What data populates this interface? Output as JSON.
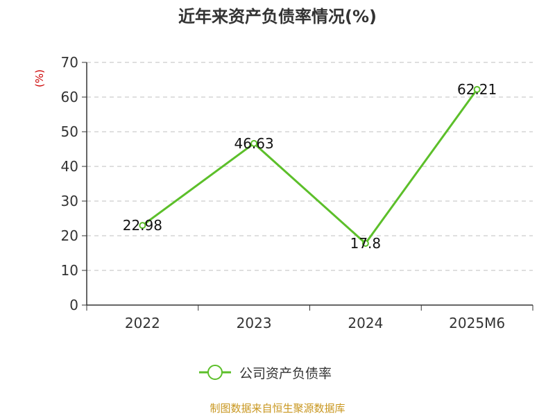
{
  "chart_data": {
    "type": "line",
    "title": "近年来资产负债率情况(%)",
    "ylabel": "(%)",
    "xlabel": "",
    "categories": [
      "2022",
      "2023",
      "2024",
      "2025M6"
    ],
    "series": [
      {
        "name": "公司资产负债率",
        "values": [
          22.98,
          46.63,
          17.8,
          62.21
        ]
      }
    ],
    "ylim": [
      0,
      70
    ],
    "yticks": [
      0,
      10,
      20,
      30,
      40,
      50,
      60,
      70
    ],
    "grid": true,
    "legend": "bottom",
    "colors": {
      "line": "#5cbf2a",
      "grid": "#cccccc",
      "axis": "#333333"
    }
  },
  "footer": {
    "source": "制图数据来自恒生聚源数据库"
  }
}
